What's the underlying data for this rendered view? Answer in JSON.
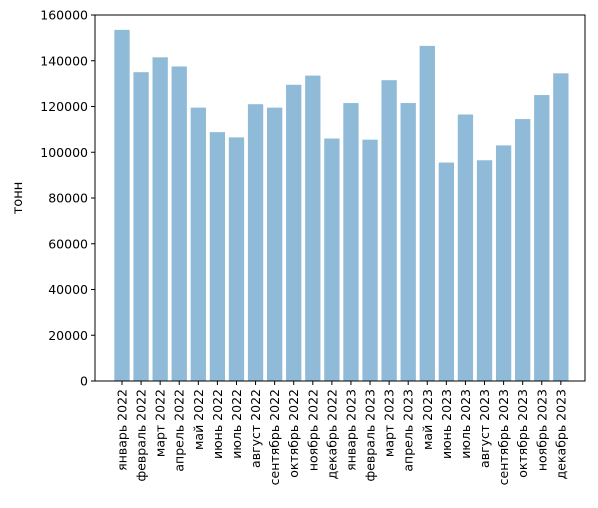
{
  "chart_data": {
    "type": "bar",
    "title": "",
    "xlabel": "",
    "ylabel": "тонн",
    "ylim": [
      0,
      160000
    ],
    "yticks": [
      0,
      20000,
      40000,
      60000,
      80000,
      100000,
      120000,
      140000,
      160000
    ],
    "grid": false,
    "bar_color": "#8fbad8",
    "categories": [
      "январь 2022",
      "февраль 2022",
      "март 2022",
      "апрель 2022",
      "май 2022",
      "июнь 2022",
      "июль 2022",
      "август 2022",
      "сентябрь 2022",
      "октябрь 2022",
      "ноябрь 2022",
      "декабрь 2022",
      "январь 2023",
      "февраль 2023",
      "март 2023",
      "апрель 2023",
      "май 2023",
      "июнь 2023",
      "июль 2023",
      "август 2023",
      "сентябрь 2023",
      "октябрь 2023",
      "ноябрь 2023",
      "декабрь 2023"
    ],
    "values": [
      153500,
      135000,
      141500,
      137500,
      119500,
      108800,
      106500,
      121000,
      119500,
      129500,
      133500,
      106000,
      121500,
      105500,
      131500,
      121500,
      146500,
      95500,
      116500,
      96500,
      103000,
      114500,
      125000,
      134500
    ]
  }
}
